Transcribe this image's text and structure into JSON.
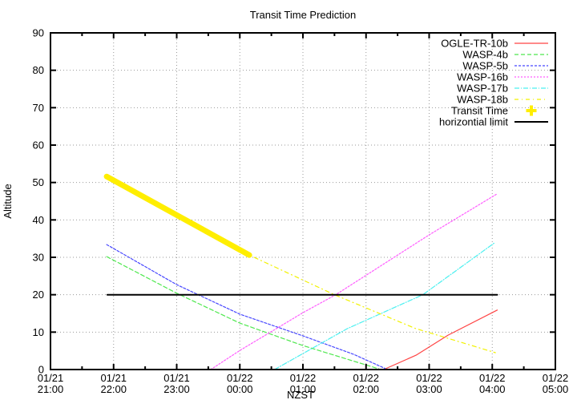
{
  "chart_data": {
    "type": "line",
    "title": "Transit Time Prediction",
    "xlabel": "NZST",
    "ylabel": "Altitude",
    "ylim": [
      0,
      90
    ],
    "xlim_hours_after_first_tick": [
      0,
      8
    ],
    "grid": true,
    "legend_position": "top-right-inside",
    "x_ticks": [
      {
        "t": 0,
        "date": "01/21",
        "time": "21:00"
      },
      {
        "t": 1,
        "date": "01/21",
        "time": "22:00"
      },
      {
        "t": 2,
        "date": "01/21",
        "time": "23:00"
      },
      {
        "t": 3,
        "date": "01/22",
        "time": "00:00"
      },
      {
        "t": 4,
        "date": "01/22",
        "time": "01:00"
      },
      {
        "t": 5,
        "date": "01/22",
        "time": "02:00"
      },
      {
        "t": 6,
        "date": "01/22",
        "time": "03:00"
      },
      {
        "t": 7,
        "date": "01/22",
        "time": "04:00"
      },
      {
        "t": 8,
        "date": "01/22",
        "time": "05:00"
      }
    ],
    "y_ticks": [
      0,
      10,
      20,
      30,
      40,
      50,
      60,
      70,
      80,
      90
    ],
    "x_unit": "hours after 01/21 21:00 NZST",
    "series": [
      {
        "name": "OGLE-TR-10b",
        "color": "#ff4545",
        "dash": "",
        "width": 1.2,
        "legend_sample": "line",
        "points": [
          [
            5.28,
            0
          ],
          [
            5.8,
            3.9
          ],
          [
            6.3,
            9.2
          ],
          [
            7.08,
            15.9
          ]
        ]
      },
      {
        "name": "WASP-4b",
        "color": "#4ee84e",
        "dash": "5,3",
        "width": 1.2,
        "legend_sample": "line",
        "points": [
          [
            0.89,
            30.2
          ],
          [
            2.0,
            20.4
          ],
          [
            3.0,
            12.4
          ],
          [
            4.0,
            6.4
          ],
          [
            5.2,
            0.2
          ]
        ]
      },
      {
        "name": "WASP-5b",
        "color": "#4848ff",
        "dash": "3,2",
        "width": 1.2,
        "legend_sample": "line",
        "points": [
          [
            0.89,
            33.4
          ],
          [
            2.0,
            22.7
          ],
          [
            3.0,
            14.8
          ],
          [
            4.0,
            9.0
          ],
          [
            4.8,
            4.1
          ],
          [
            5.3,
            0.3
          ]
        ]
      },
      {
        "name": "WASP-16b",
        "color": "#ff5cff",
        "dash": "2,2",
        "width": 1.2,
        "legend_sample": "line",
        "points": [
          [
            2.54,
            0
          ],
          [
            3.0,
            5.1
          ],
          [
            4.0,
            15.2
          ],
          [
            4.52,
            20.0
          ],
          [
            6.0,
            36.0
          ],
          [
            7.08,
            47.0
          ]
        ]
      },
      {
        "name": "WASP-17b",
        "color": "#4af0f0",
        "dash": "6,2,1,2",
        "width": 1.2,
        "legend_sample": "line",
        "points": [
          [
            3.55,
            0
          ],
          [
            4.7,
            10.9
          ],
          [
            5.9,
            20.0
          ],
          [
            7.03,
            33.8
          ]
        ]
      },
      {
        "name": "WASP-18b",
        "color": "#f2f200",
        "dash": "5,4,1,4",
        "width": 1.2,
        "legend_sample": "line",
        "points": [
          [
            0.89,
            51.6
          ],
          [
            2.0,
            41.3
          ],
          [
            3.15,
            30.6
          ],
          [
            4.5,
            20.0
          ],
          [
            5.78,
            11.0
          ],
          [
            7.05,
            4.5
          ]
        ]
      },
      {
        "name": "Transit Time",
        "color": "#ffee00",
        "dash": "",
        "width": 7,
        "legend_sample": "cross",
        "points": [
          [
            0.89,
            51.6
          ],
          [
            2.0,
            41.3
          ],
          [
            3.15,
            30.6
          ]
        ]
      },
      {
        "name": "horizontial limit",
        "color": "#000000",
        "dash": "",
        "width": 2,
        "legend_sample": "line",
        "points": [
          [
            0.9,
            20
          ],
          [
            7.08,
            20
          ]
        ]
      }
    ]
  }
}
